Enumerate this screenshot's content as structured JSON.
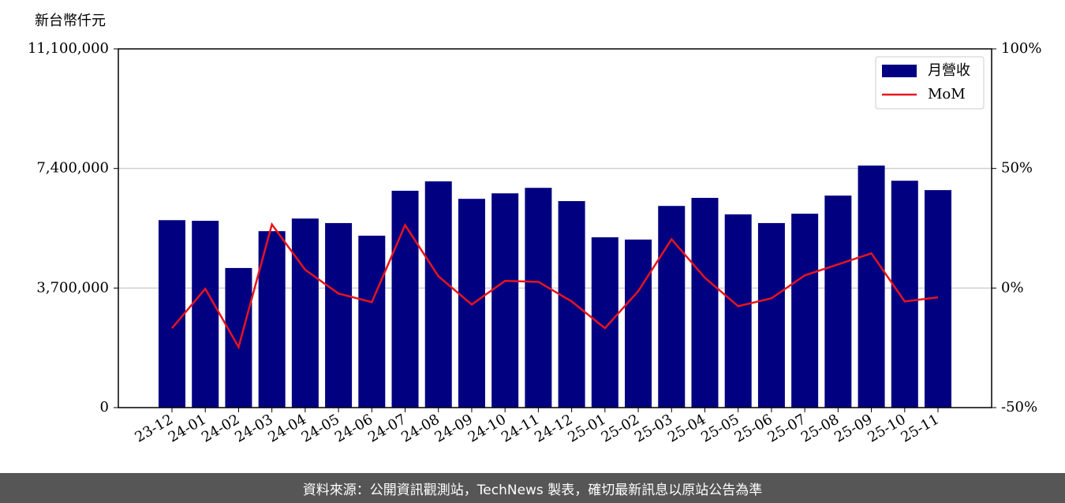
{
  "chart_data": {
    "type": "bar-line",
    "y_axis_label": "新台幣仟元",
    "categories": [
      "23-12",
      "24-01",
      "24-02",
      "24-03",
      "24-04",
      "24-05",
      "24-06",
      "24-07",
      "24-08",
      "24-09",
      "24-10",
      "24-11",
      "24-12",
      "25-01",
      "25-02",
      "25-03",
      "25-04",
      "25-05",
      "25-06",
      "25-07",
      "25-08",
      "25-09",
      "25-10",
      "25-11"
    ],
    "series": [
      {
        "name": "月營收",
        "color": "#000080",
        "values": [
          5800000,
          5780000,
          4320000,
          5460000,
          5850000,
          5710000,
          5320000,
          6710000,
          7000000,
          6460000,
          6630000,
          6800000,
          6390000,
          5270000,
          5200000,
          6240000,
          6490000,
          5980000,
          5710000,
          6000000,
          6560000,
          7490000,
          7020000,
          6730000
        ]
      },
      {
        "name": "MoM",
        "color": "#e8141c",
        "axis": "y2",
        "values": [
          -16.8,
          -0.3,
          -24.7,
          26.6,
          7.6,
          -2.3,
          -5.9,
          26.3,
          4.9,
          -6.9,
          3.0,
          2.6,
          -5.6,
          -16.8,
          -1.3,
          20.4,
          4.3,
          -7.6,
          -4.3,
          5.3,
          9.9,
          14.5,
          -5.6,
          -3.9
        ]
      }
    ],
    "ylim": [
      0,
      11100000
    ],
    "yticks": [
      0,
      {
        "value": 3700000,
        "label": "3,700,000"
      },
      {
        "value": 7400000,
        "label": "7,400,000"
      },
      {
        "value": 11100000,
        "label": "11,100,000"
      }
    ],
    "y2lim": [
      -50,
      100
    ],
    "y2ticks": [
      {
        "value": -50,
        "label": "-50%"
      },
      {
        "value": 0,
        "label": "0%"
      },
      {
        "value": 50,
        "label": "50%"
      },
      {
        "value": 100,
        "label": "100%"
      }
    ],
    "grid": true,
    "legend": "upper right"
  },
  "footer": "資料來源：公開資訊觀測站，TechNews 製表，確切最新訊息以原站公告為準"
}
